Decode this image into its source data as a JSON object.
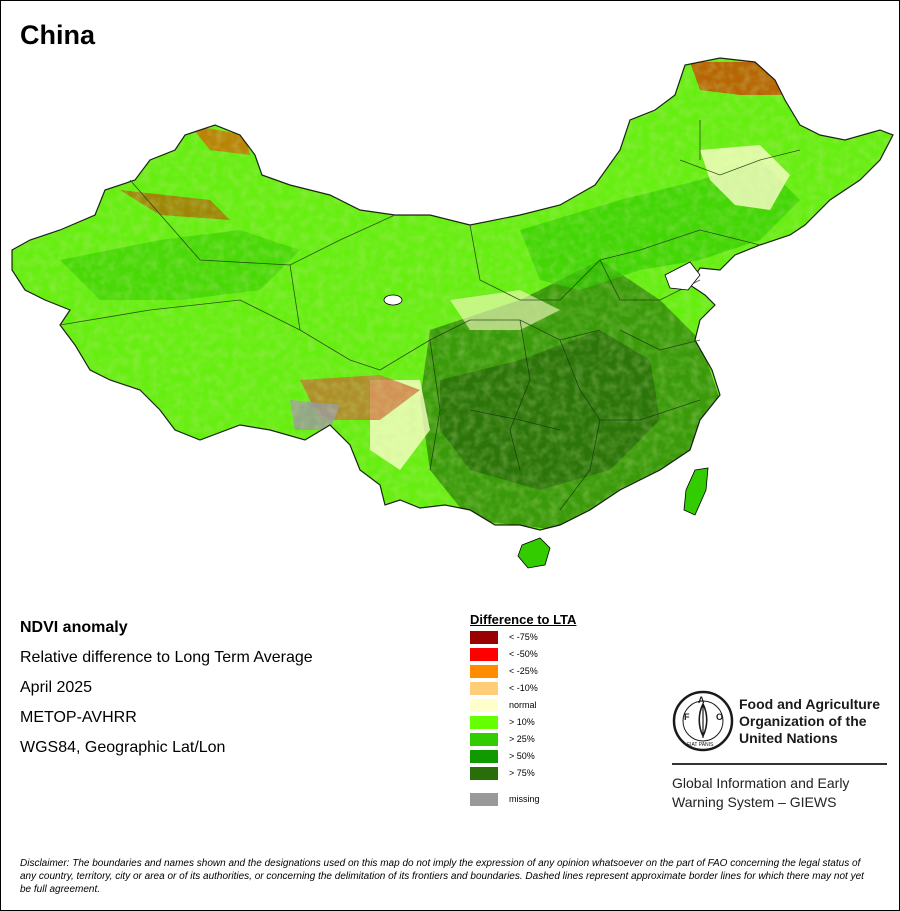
{
  "title": "China",
  "info": {
    "line1": "NDVI anomaly",
    "line2": "Relative difference to Long Term Average",
    "line3": "April 2025",
    "line4": "METOP-AVHRR",
    "line5": "WGS84, Geographic Lat/Lon"
  },
  "legend": {
    "title": "Difference to LTA",
    "items": [
      {
        "label": "< -75%",
        "color": "#990000"
      },
      {
        "label": "< -50%",
        "color": "#ff0000"
      },
      {
        "label": "< -25%",
        "color": "#ff8c00"
      },
      {
        "label": "< -10%",
        "color": "#ffcc77"
      },
      {
        "label": "normal",
        "color": "#ffffcc"
      },
      {
        "label": "> 10%",
        "color": "#66ff00"
      },
      {
        "label": "> 25%",
        "color": "#33cc00"
      },
      {
        "label": "> 50%",
        "color": "#119900"
      },
      {
        "label": "> 75%",
        "color": "#2a6e0a"
      },
      {
        "label": "missing",
        "color": "#999999"
      }
    ]
  },
  "org": {
    "logo_text": "FAO",
    "logo_sub": "FIAT PANIS",
    "name_line1": "Food and Agriculture",
    "name_line2": "Organization of the",
    "name_line3": "United Nations",
    "giews_line1": "Global Information and Early",
    "giews_line2": "Warning System – GIEWS"
  },
  "disclaimer": "Disclaimer: The boundaries and names shown and the designations used on this map do not imply the expression of any opinion whatsoever on the part of FAO concerning the legal status of any country, territory, city or area or of its authorities, or concerning the delimitation of its frontiers and boundaries. Dashed lines represent approximate border lines for which there may not yet be full agreement."
}
